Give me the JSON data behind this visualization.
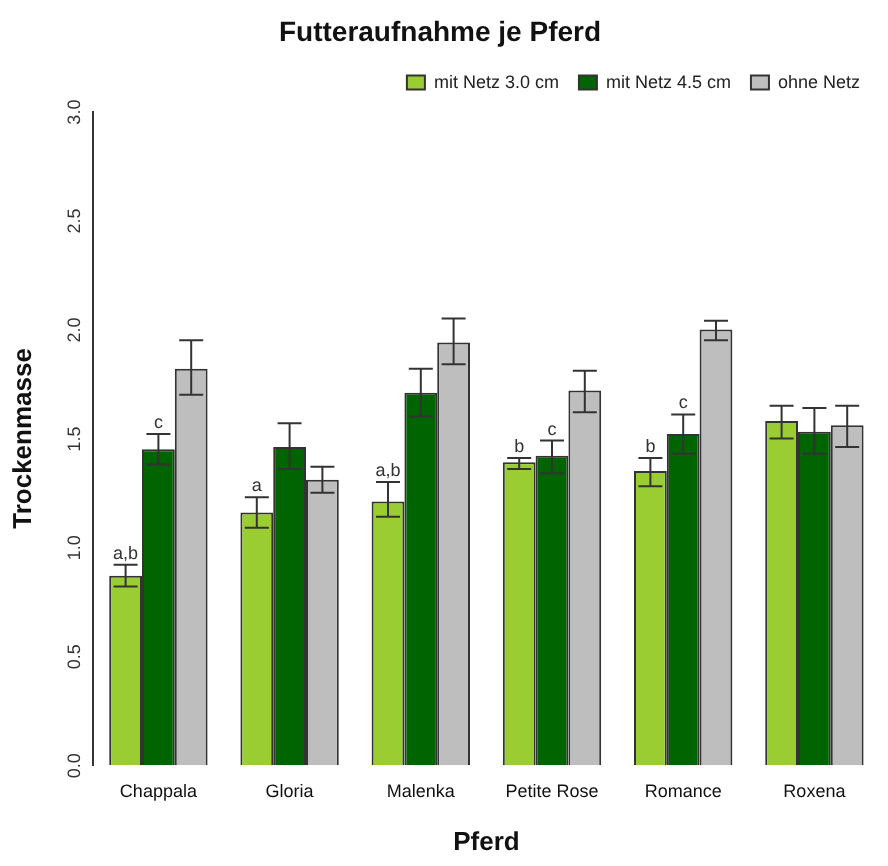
{
  "chart_data": {
    "type": "bar",
    "title": "Futteraufnahme je Pferd",
    "xlabel": "Pferd",
    "ylabel": "Trockenmasse",
    "categories": [
      "Chappala",
      "Gloria",
      "Malenka",
      "Petite Rose",
      "Romance",
      "Roxena"
    ],
    "series": [
      {
        "name": "mit Netz 3.0 cm",
        "color": "#9acd32",
        "values": [
          0.87,
          1.16,
          1.21,
          1.39,
          1.35,
          1.58
        ],
        "errors": [
          [
            0.82,
            0.92
          ],
          [
            1.09,
            1.23
          ],
          [
            1.14,
            1.3
          ],
          [
            1.36,
            1.41
          ],
          [
            1.28,
            1.41
          ],
          [
            1.5,
            1.65
          ]
        ]
      },
      {
        "name": "mit Netz 4.5 cm",
        "color": "#006400",
        "values": [
          1.45,
          1.46,
          1.71,
          1.42,
          1.52,
          1.53
        ],
        "errors": [
          [
            1.38,
            1.52
          ],
          [
            1.36,
            1.57
          ],
          [
            1.6,
            1.82
          ],
          [
            1.34,
            1.49
          ],
          [
            1.43,
            1.61
          ],
          [
            1.43,
            1.64
          ]
        ]
      },
      {
        "name": "ohne Netz",
        "color": "#bebebe",
        "values": [
          1.82,
          1.31,
          1.94,
          1.72,
          2.0,
          1.56
        ],
        "errors": [
          [
            1.7,
            1.95
          ],
          [
            1.25,
            1.37
          ],
          [
            1.84,
            2.05
          ],
          [
            1.62,
            1.81
          ],
          [
            1.95,
            2.04
          ],
          [
            1.46,
            1.65
          ]
        ]
      }
    ],
    "annotations": [
      "a,b",
      "c",
      "a",
      "a,b",
      "b",
      "c",
      "b",
      "c"
    ],
    "ylim": [
      0,
      3
    ],
    "yticks": [
      {
        "value": 0,
        "label": "0.0"
      },
      0.5,
      {
        "value": 1,
        "label": "1.0"
      },
      1.5,
      {
        "value": 2,
        "label": "2.0"
      },
      2.5,
      {
        "value": 3,
        "label": "3.0"
      }
    ],
    "grid": false,
    "legend": "top right"
  }
}
